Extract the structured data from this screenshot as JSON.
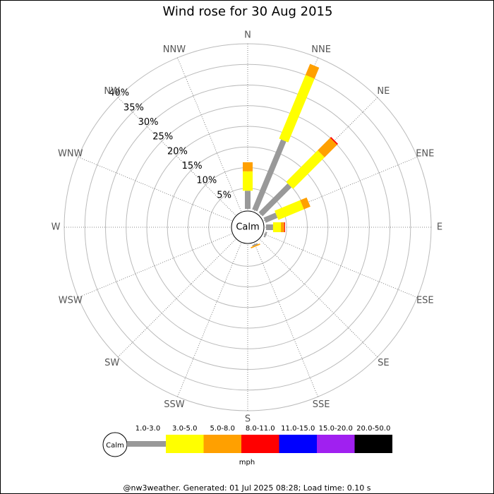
{
  "chart_data": {
    "type": "windrose",
    "title": "Wind rose for 30 Aug 2015",
    "center_label": "Calm",
    "legend_title": "mph",
    "footer": "@nw3weather. Generated: 01 Jul 2025 08:28; Load time: 0.10 s",
    "categories": [
      "N",
      "NNE",
      "NE",
      "ENE",
      "E",
      "ESE",
      "SE",
      "SSE",
      "S",
      "SSW",
      "SW",
      "WSW",
      "W",
      "WNW",
      "NW",
      "NNW"
    ],
    "rlim": [
      0,
      40
    ],
    "rticks": [
      {
        "value": 5,
        "label": "5%"
      },
      {
        "value": 10,
        "label": "10%"
      },
      {
        "value": 15,
        "label": "15%"
      },
      {
        "value": 20,
        "label": "20%"
      },
      {
        "value": 25,
        "label": "25%"
      },
      {
        "value": 30,
        "label": "30%"
      },
      {
        "value": 35,
        "label": "35%"
      },
      {
        "value": 40,
        "label": "40%"
      }
    ],
    "series": [
      {
        "name": "1.0-3.0",
        "color": "#999999",
        "values": [
          4.4,
          18.3,
          9.9,
          3.1,
          1.7,
          0.4,
          0,
          0.3,
          0,
          0,
          0,
          0,
          0,
          0,
          0,
          0
        ]
      },
      {
        "name": "3.0-5.0",
        "color": "#ffff00",
        "values": [
          4.7,
          16.7,
          10.8,
          6.7,
          1.9,
          0,
          0,
          0,
          0,
          0,
          0,
          0,
          0,
          0,
          0,
          0
        ]
      },
      {
        "name": "5.0-8.0",
        "color": "#ffa000",
        "values": [
          2.2,
          2.9,
          4.3,
          1.7,
          0.8,
          0,
          0,
          0.3,
          0,
          0,
          0,
          0,
          0,
          0,
          0,
          0
        ]
      },
      {
        "name": "8.0-11.0",
        "color": "#ff0000",
        "values": [
          0,
          0,
          0.3,
          0,
          0.2,
          0,
          0,
          0,
          0,
          0,
          0,
          0,
          0,
          0,
          0,
          0
        ]
      },
      {
        "name": "11.0-15.0",
        "color": "#0000ff",
        "values": [
          0,
          0,
          0,
          0,
          0,
          0,
          0,
          0,
          0,
          0,
          0,
          0,
          0,
          0,
          0,
          0
        ]
      },
      {
        "name": "15.0-20.0",
        "color": "#a020f0",
        "values": [
          0,
          0,
          0,
          0,
          0,
          0,
          0,
          0,
          0,
          0,
          0,
          0,
          0,
          0,
          0,
          0
        ]
      },
      {
        "name": "20.0-50.0",
        "color": "#000000",
        "values": [
          0,
          0,
          0,
          0,
          0,
          0,
          0,
          0,
          0,
          0,
          0,
          0,
          0,
          0,
          0,
          0
        ]
      }
    ]
  }
}
